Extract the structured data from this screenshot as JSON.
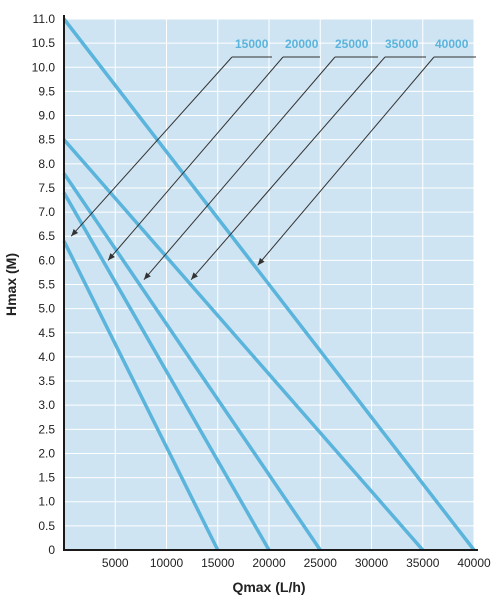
{
  "chart_data": {
    "type": "line",
    "title": "",
    "xlabel": "Qmax (L/h)",
    "ylabel": "Hmax (M)",
    "xlim": [
      0,
      40000
    ],
    "ylim": [
      0,
      11
    ],
    "x_ticks": [
      "5000",
      "10000",
      "15000",
      "20000",
      "25000",
      "30000",
      "35000",
      "40000"
    ],
    "x_tick_values": [
      5000,
      10000,
      15000,
      20000,
      25000,
      30000,
      35000,
      40000
    ],
    "y_ticks": [
      "0",
      "0.5",
      "1.0",
      "1.5",
      "2.0",
      "2.5",
      "3.0",
      "3.5",
      "4.0",
      "4.5",
      "5.0",
      "5.5",
      "6.0",
      "6.5",
      "7.0",
      "7.5",
      "8.0",
      "8.5",
      "9.0",
      "9.5",
      "10.0",
      "10.5",
      "11.0"
    ],
    "y_tick_values": [
      0,
      0.5,
      1,
      1.5,
      2,
      2.5,
      3,
      3.5,
      4,
      4.5,
      5,
      5.5,
      6,
      6.5,
      7,
      7.5,
      8,
      8.5,
      9,
      9.5,
      10,
      10.5,
      11
    ],
    "grid": true,
    "legend_position": "top-right",
    "series": [
      {
        "name": "15000",
        "x": [
          0,
          15000
        ],
        "y": [
          6.4,
          0
        ]
      },
      {
        "name": "20000",
        "x": [
          0,
          20000
        ],
        "y": [
          7.4,
          0
        ]
      },
      {
        "name": "25000",
        "x": [
          0,
          25000
        ],
        "y": [
          7.8,
          0
        ]
      },
      {
        "name": "35000",
        "x": [
          0,
          35000
        ],
        "y": [
          8.5,
          0
        ]
      },
      {
        "name": "40000",
        "x": [
          0,
          40000
        ],
        "y": [
          11.0,
          0
        ]
      }
    ],
    "annotations": [
      {
        "series": "15000",
        "arrow_tip": [
          700,
          6.5
        ]
      },
      {
        "series": "20000",
        "arrow_tip": [
          4300,
          6.0
        ]
      },
      {
        "series": "25000",
        "arrow_tip": [
          7800,
          5.6
        ]
      },
      {
        "series": "35000",
        "arrow_tip": [
          12400,
          5.6
        ]
      },
      {
        "series": "40000",
        "arrow_tip": [
          18900,
          5.9
        ]
      }
    ],
    "colors": {
      "line": "#5ab4dc",
      "legend_text": "#5ab4dc",
      "plot_background": "#cfe4f2",
      "grid": "#ffffff",
      "axis": "#1a1a1a",
      "annotation": "#333333"
    }
  }
}
